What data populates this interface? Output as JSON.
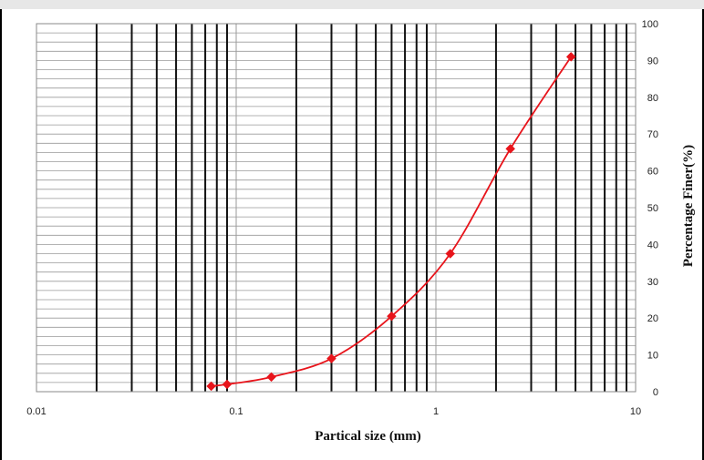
{
  "chart_data": {
    "type": "line",
    "title": "",
    "xlabel": "Partical size (mm)",
    "ylabel": "Percentage Finer(%)",
    "x_scale": "log",
    "xlim": [
      0.01,
      10
    ],
    "ylim": [
      0,
      100
    ],
    "x_tick_labels": [
      "0.01",
      "0.1",
      "1",
      "10"
    ],
    "x_ticks": [
      0.01,
      0.1,
      1,
      10
    ],
    "y_ticks": [
      0,
      10,
      20,
      30,
      40,
      50,
      60,
      70,
      80,
      90,
      100
    ],
    "y_tick_labels": [
      "0",
      "10",
      "20",
      "30",
      "40",
      "50",
      "60",
      "70",
      "80",
      "90",
      "100"
    ],
    "y_axis_side": "right",
    "grid": true,
    "minor_grid_y_step": 2.5,
    "series": [
      {
        "name": "",
        "color": "#e8141b",
        "marker": "diamond",
        "smooth": true,
        "points": [
          {
            "x": 0.075,
            "y": 1.5
          },
          {
            "x": 0.09,
            "y": 2
          },
          {
            "x": 0.15,
            "y": 4
          },
          {
            "x": 0.3,
            "y": 9
          },
          {
            "x": 0.6,
            "y": 20.5
          },
          {
            "x": 1.18,
            "y": 37.5
          },
          {
            "x": 2.36,
            "y": 66
          },
          {
            "x": 4.75,
            "y": 91
          }
        ]
      }
    ]
  }
}
